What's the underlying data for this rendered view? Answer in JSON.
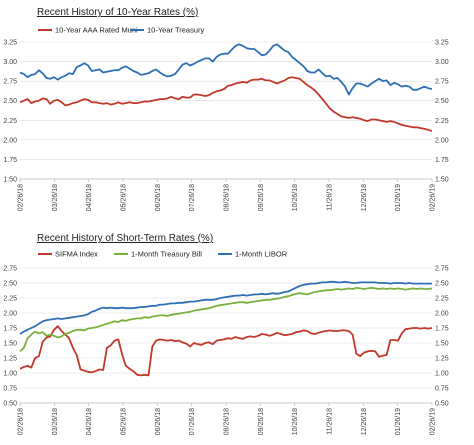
{
  "chart_data": [
    {
      "type": "line",
      "title": "Recent History of 10-Year Rates (%)",
      "xlabel": "",
      "ylabel": "",
      "ylim": [
        1.5,
        3.25
      ],
      "yticks": [
        "3.25",
        "3.00",
        "2.75",
        "2.50",
        "2.25",
        "2.00",
        "1.75",
        "1.50"
      ],
      "y_axis_right": true,
      "grid": true,
      "legend": "top-left",
      "x_tick_labels": [
        "02/26/18",
        "03/26/18",
        "04/26/18",
        "05/26/18",
        "06/26/18",
        "07/26/18",
        "08/26/18",
        "09/26/18",
        "10/26/18",
        "11/26/18",
        "12/26/18",
        "01/26/19",
        "02/26/19"
      ],
      "series": [
        {
          "name": "10-Year AAA Rated Muni",
          "color": "#c0392b",
          "values": [
            2.48,
            2.5,
            2.52,
            2.47,
            2.49,
            2.5,
            2.53,
            2.52,
            2.46,
            2.5,
            2.51,
            2.48,
            2.44,
            2.45,
            2.47,
            2.48,
            2.5,
            2.52,
            2.51,
            2.48,
            2.48,
            2.47,
            2.46,
            2.47,
            2.45,
            2.46,
            2.48,
            2.46,
            2.47,
            2.48,
            2.47,
            2.47,
            2.48,
            2.49,
            2.49,
            2.5,
            2.51,
            2.52,
            2.52,
            2.53,
            2.55,
            2.53,
            2.52,
            2.55,
            2.54,
            2.54,
            2.58,
            2.58,
            2.57,
            2.56,
            2.57,
            2.6,
            2.62,
            2.63,
            2.65,
            2.69,
            2.7,
            2.72,
            2.73,
            2.74,
            2.73,
            2.76,
            2.77,
            2.77,
            2.78,
            2.76,
            2.76,
            2.74,
            2.72,
            2.74,
            2.76,
            2.79,
            2.8,
            2.79,
            2.78,
            2.74,
            2.7,
            2.67,
            2.63,
            2.58,
            2.52,
            2.46,
            2.4,
            2.36,
            2.33,
            2.3,
            2.29,
            2.28,
            2.29,
            2.28,
            2.27,
            2.25,
            2.24,
            2.26,
            2.26,
            2.25,
            2.24,
            2.23,
            2.24,
            2.23,
            2.21,
            2.19,
            2.18,
            2.17,
            2.16,
            2.16,
            2.15,
            2.14,
            2.13,
            2.11
          ]
        },
        {
          "name": "10-Year Treasury",
          "color": "#2e6fb5",
          "values": [
            2.86,
            2.84,
            2.8,
            2.83,
            2.84,
            2.89,
            2.85,
            2.79,
            2.78,
            2.8,
            2.77,
            2.8,
            2.82,
            2.85,
            2.84,
            2.93,
            2.95,
            2.98,
            2.95,
            2.88,
            2.89,
            2.9,
            2.86,
            2.87,
            2.88,
            2.89,
            2.89,
            2.92,
            2.94,
            2.91,
            2.88,
            2.86,
            2.83,
            2.84,
            2.85,
            2.88,
            2.9,
            2.86,
            2.83,
            2.81,
            2.82,
            2.84,
            2.9,
            2.96,
            2.98,
            2.95,
            2.97,
            3.0,
            3.02,
            3.04,
            3.04,
            3.0,
            3.06,
            3.09,
            3.1,
            3.1,
            3.15,
            3.2,
            3.22,
            3.2,
            3.17,
            3.16,
            3.16,
            3.12,
            3.08,
            3.09,
            3.14,
            3.2,
            3.22,
            3.18,
            3.14,
            3.12,
            3.06,
            3.02,
            2.98,
            2.94,
            2.88,
            2.86,
            2.86,
            2.9,
            2.85,
            2.81,
            2.82,
            2.78,
            2.79,
            2.74,
            2.68,
            2.58,
            2.66,
            2.72,
            2.72,
            2.7,
            2.68,
            2.72,
            2.75,
            2.78,
            2.75,
            2.76,
            2.7,
            2.73,
            2.71,
            2.68,
            2.69,
            2.68,
            2.64,
            2.64,
            2.66,
            2.68,
            2.66,
            2.65
          ]
        }
      ]
    },
    {
      "type": "line",
      "title": "Recent History of Short-Term Rates (%)",
      "xlabel": "",
      "ylabel": "",
      "ylim": [
        0.5,
        2.75
      ],
      "yticks": [
        "2.75",
        "2.50",
        "2.25",
        "2.00",
        "1.75",
        "1.50",
        "1.25",
        "1.00",
        "0.75",
        "0.50"
      ],
      "y_axis_right": true,
      "grid": true,
      "legend": "top",
      "x_tick_labels": [
        "02/26/18",
        "03/26/18",
        "04/26/18",
        "05/26/18",
        "06/26/18",
        "07/26/18",
        "08/26/18",
        "09/26/18",
        "10/26/18",
        "11/26/18",
        "12/26/18",
        "01/26/19",
        "02/26/19"
      ],
      "series": [
        {
          "name": "SIFMA Index",
          "color": "#c0392b",
          "values": [
            1.07,
            1.1,
            1.12,
            1.09,
            1.25,
            1.28,
            1.52,
            1.59,
            1.61,
            1.72,
            1.78,
            1.7,
            1.64,
            1.58,
            1.42,
            1.3,
            1.06,
            1.04,
            1.02,
            1.01,
            1.03,
            1.06,
            1.05,
            1.42,
            1.46,
            1.54,
            1.56,
            1.31,
            1.12,
            1.07,
            1.03,
            0.97,
            0.96,
            0.97,
            0.96,
            1.44,
            1.54,
            1.56,
            1.55,
            1.54,
            1.55,
            1.53,
            1.54,
            1.51,
            1.49,
            1.44,
            1.5,
            1.48,
            1.47,
            1.5,
            1.51,
            1.48,
            1.54,
            1.55,
            1.56,
            1.58,
            1.57,
            1.6,
            1.58,
            1.57,
            1.6,
            1.61,
            1.6,
            1.62,
            1.65,
            1.64,
            1.62,
            1.64,
            1.67,
            1.65,
            1.63,
            1.64,
            1.65,
            1.68,
            1.69,
            1.71,
            1.7,
            1.66,
            1.65,
            1.67,
            1.69,
            1.7,
            1.71,
            1.7,
            1.7,
            1.71,
            1.71,
            1.7,
            1.64,
            1.32,
            1.28,
            1.34,
            1.36,
            1.37,
            1.36,
            1.27,
            1.29,
            1.3,
            1.55,
            1.55,
            1.54,
            1.66,
            1.73,
            1.74,
            1.75,
            1.75,
            1.74,
            1.75,
            1.74,
            1.75
          ]
        },
        {
          "name": "1-Month Treasury Bill",
          "color": "#7ab03c",
          "values": [
            1.36,
            1.42,
            1.58,
            1.64,
            1.69,
            1.66,
            1.68,
            1.62,
            1.64,
            1.62,
            1.59,
            1.61,
            1.65,
            1.67,
            1.7,
            1.72,
            1.72,
            1.71,
            1.74,
            1.75,
            1.76,
            1.78,
            1.8,
            1.82,
            1.84,
            1.86,
            1.85,
            1.88,
            1.87,
            1.89,
            1.9,
            1.91,
            1.91,
            1.93,
            1.92,
            1.94,
            1.95,
            1.96,
            1.96,
            1.95,
            1.97,
            1.98,
            1.99,
            2.0,
            2.01,
            2.02,
            2.04,
            2.05,
            2.06,
            2.07,
            2.08,
            2.1,
            2.12,
            2.13,
            2.14,
            2.15,
            2.16,
            2.17,
            2.18,
            2.18,
            2.17,
            2.18,
            2.19,
            2.2,
            2.21,
            2.22,
            2.22,
            2.23,
            2.24,
            2.25,
            2.27,
            2.28,
            2.3,
            2.32,
            2.33,
            2.32,
            2.31,
            2.33,
            2.35,
            2.36,
            2.37,
            2.38,
            2.38,
            2.39,
            2.4,
            2.39,
            2.4,
            2.41,
            2.4,
            2.42,
            2.41,
            2.4,
            2.41,
            2.42,
            2.41,
            2.4,
            2.41,
            2.4,
            2.41,
            2.4,
            2.41,
            2.4,
            2.39,
            2.4,
            2.41,
            2.4,
            2.41,
            2.4,
            2.4,
            2.41
          ]
        },
        {
          "name": "1-Month LIBOR",
          "color": "#2e6fb5",
          "values": [
            1.65,
            1.69,
            1.72,
            1.75,
            1.78,
            1.82,
            1.86,
            1.88,
            1.89,
            1.9,
            1.91,
            1.9,
            1.91,
            1.92,
            1.93,
            1.94,
            1.95,
            1.96,
            1.98,
            2.02,
            2.04,
            2.07,
            2.09,
            2.08,
            2.09,
            2.08,
            2.08,
            2.09,
            2.08,
            2.08,
            2.08,
            2.09,
            2.1,
            2.1,
            2.11,
            2.12,
            2.12,
            2.14,
            2.14,
            2.15,
            2.16,
            2.16,
            2.17,
            2.17,
            2.18,
            2.19,
            2.19,
            2.2,
            2.21,
            2.22,
            2.22,
            2.22,
            2.23,
            2.25,
            2.26,
            2.27,
            2.28,
            2.29,
            2.29,
            2.3,
            2.29,
            2.3,
            2.31,
            2.31,
            2.32,
            2.31,
            2.32,
            2.33,
            2.32,
            2.33,
            2.35,
            2.36,
            2.39,
            2.42,
            2.45,
            2.47,
            2.48,
            2.49,
            2.49,
            2.5,
            2.51,
            2.51,
            2.52,
            2.52,
            2.51,
            2.51,
            2.52,
            2.51,
            2.5,
            2.5,
            2.51,
            2.51,
            2.51,
            2.51,
            2.51,
            2.5,
            2.5,
            2.5,
            2.49,
            2.5,
            2.5,
            2.5,
            2.49,
            2.5,
            2.49,
            2.49,
            2.49,
            2.49,
            2.49,
            2.49
          ]
        }
      ]
    }
  ]
}
